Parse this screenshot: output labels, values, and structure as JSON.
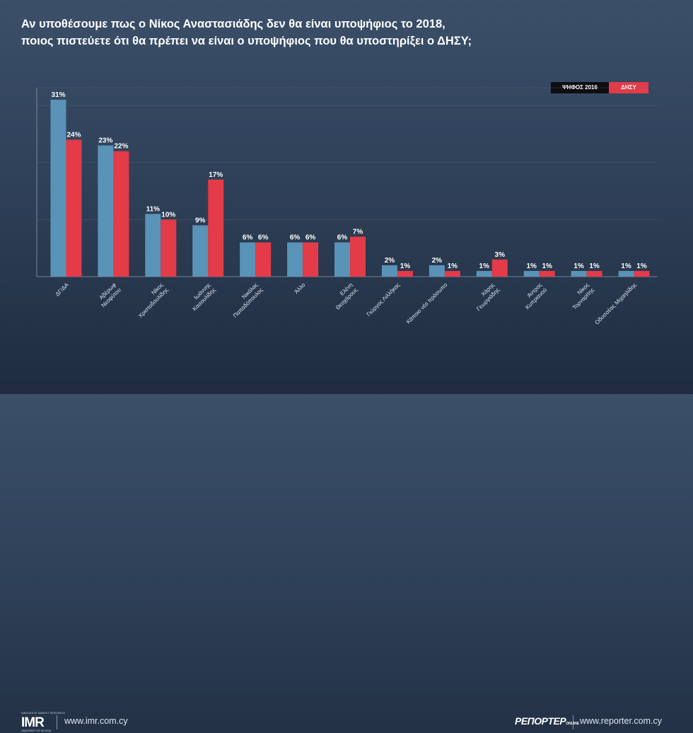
{
  "title": {
    "line1": "Αν υποθέσουμε πως ο Νίκος Αναστασιάδης δεν θα είναι υποψήφιος το 2018,",
    "line2": "ποιος πιστεύετε ότι θα πρέπει να είναι ο υποψήφιος που θα υποστηρίξει ο ΔΗΣΥ;"
  },
  "legend": {
    "series1": "ΨΗΦΟΣ 2016",
    "series2": "ΔΗΣΥ"
  },
  "colors": {
    "series1": "#5a93b8",
    "series2": "#e33b48",
    "grid": "#5d6e84",
    "axis": "#8d9bb0"
  },
  "chart_data": {
    "type": "bar",
    "categories": [
      "ΔΓ/ΔΑ",
      "Αβέρωφ Νεοφύτου",
      "Νίκος Χριστοδουλίδης",
      "Ιωάννης Κασουλίδης",
      "Νικόλας Παπαδόπουλος",
      "Άλλο",
      "Ελένη Θεοχάρους",
      "Γιώργος Λιλλήκας",
      "Κάποιο νέο πρόσωπο",
      "Χάρης Γεωργιάδης",
      "Άντρος Κυπριανού",
      "Νίκος Τορναρίτης",
      "Οδυσσέας Μιχαηλίδης"
    ],
    "category_lines": [
      [
        "ΔΓ/ΔΑ"
      ],
      [
        "Αβέρωφ",
        "Νεοφύτου"
      ],
      [
        "Νίκος",
        "Χριστοδουλίδης"
      ],
      [
        "Ιωάννης",
        "Κασουλίδης"
      ],
      [
        "Νικόλας",
        "Παπαδόπουλος"
      ],
      [
        "Άλλο"
      ],
      [
        "Ελένη",
        "Θεοχάρους"
      ],
      [
        "Γιώργος Λιλλήκας"
      ],
      [
        "Κάποιο νέο πρόσωπο"
      ],
      [
        "Χάρης",
        "Γεωργιάδης"
      ],
      [
        "Άντρος",
        "Κυπριανού"
      ],
      [
        "Νίκος",
        "Τορναρίτης"
      ],
      [
        "Οδυσσέας Μιχαηλίδης"
      ]
    ],
    "series": [
      {
        "name": "ΨΗΦΟΣ 2016",
        "values": [
          31,
          23,
          11,
          9,
          6,
          6,
          6,
          2,
          2,
          1,
          1,
          1,
          1
        ]
      },
      {
        "name": "ΔΗΣΥ",
        "values": [
          24,
          22,
          10,
          17,
          6,
          6,
          7,
          1,
          1,
          3,
          1,
          1,
          1
        ]
      }
    ],
    "value_suffix": "%",
    "ylim": [
      0,
      31
    ],
    "grid": true,
    "legend_position": "top-right"
  },
  "footer": {
    "imr_logo_text": "IMR",
    "imr_top_text": "INNOVATIVE MARKET RESEARCH",
    "imr_bottom_text": "UNIVERSITY OF NICOSIA",
    "imr_url": "www.imr.com.cy",
    "reporter_logo_text": "ΡΕΠΟΡΤΕΡ",
    "reporter_logo_sub": "ONLINE",
    "reporter_url": "www.reporter.com.cy"
  }
}
